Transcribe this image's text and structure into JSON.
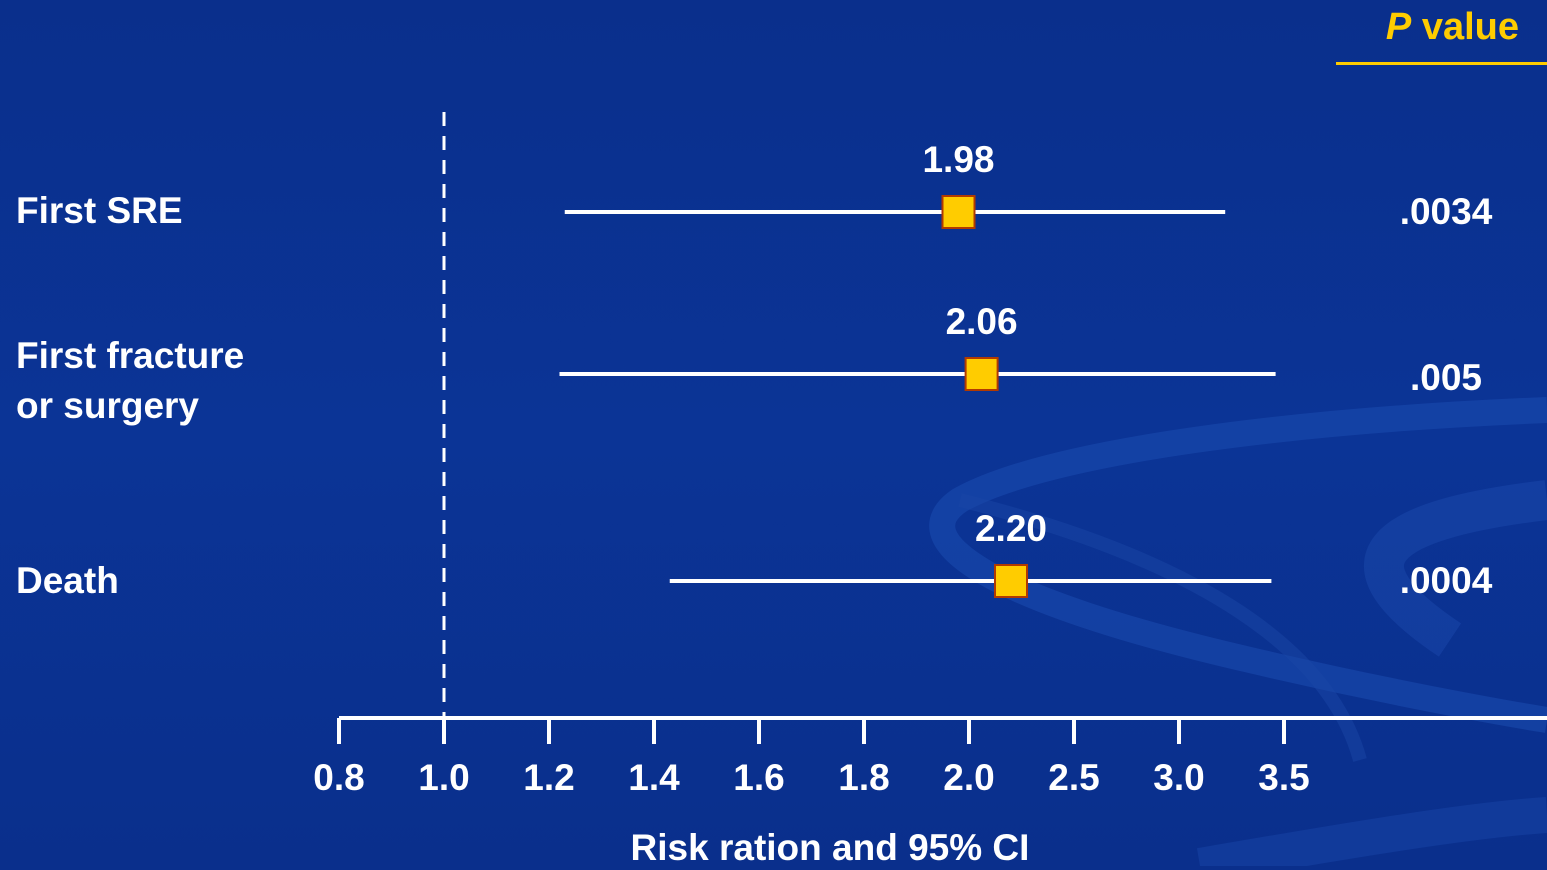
{
  "header": {
    "p_label": "P",
    "value_label": "value"
  },
  "colors": {
    "background": "#0b3496",
    "accent": "#ffcc00",
    "marker": "#ffcc00",
    "line": "#ffffff"
  },
  "rows": [
    {
      "label_lines": [
        "First SRE"
      ],
      "p_value": ".0034"
    },
    {
      "label_lines": [
        "First fracture",
        "or surgery"
      ],
      "p_value": ".005"
    },
    {
      "label_lines": [
        "Death"
      ],
      "p_value": ".0004"
    }
  ],
  "chart_data": {
    "type": "forest",
    "title": "",
    "xlabel": "Risk ration and 95% CI",
    "ylabel": "",
    "x_ticks": [
      "0.8",
      "1.0",
      "1.2",
      "1.4",
      "1.6",
      "1.8",
      "2.0",
      "2.5",
      "3.0",
      "3.5"
    ],
    "reference_line": "1.0",
    "series": [
      {
        "category": "First SRE",
        "estimate": 1.98,
        "estimate_label": "1.98",
        "ci_low": 1.23,
        "ci_high": 3.22
      },
      {
        "category": "First fracture or surgery",
        "estimate": 2.06,
        "estimate_label": "2.06",
        "ci_low": 1.22,
        "ci_high": 3.46
      },
      {
        "category": "Death",
        "estimate": 2.2,
        "estimate_label": "2.20",
        "ci_low": 1.43,
        "ci_high": 3.44
      }
    ],
    "grid": false
  }
}
